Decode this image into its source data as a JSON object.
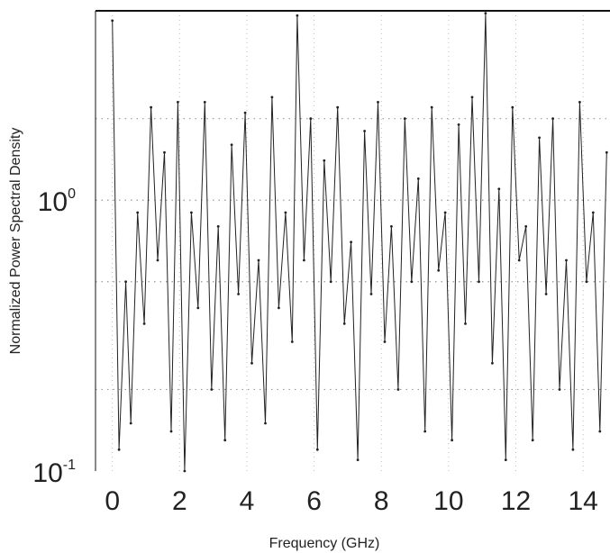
{
  "chart_data": {
    "type": "line",
    "title": "",
    "xlabel": "Frequency (GHz)",
    "ylabel": "Normalized Power Spectral Density",
    "xlim": [
      -0.5,
      14.8
    ],
    "ylim": [
      0.1,
      5
    ],
    "yscale": "log",
    "grid": true,
    "x_ticks": [
      0,
      2,
      4,
      6,
      8,
      10,
      12,
      14
    ],
    "x_tick_labels": [
      "0",
      "2",
      "4",
      "6",
      "8",
      "10",
      "12",
      "14"
    ],
    "y_ticks": [
      {
        "value": 1,
        "base": "10",
        "exponent": "0"
      },
      {
        "value": 0.1,
        "base": "10",
        "exponent": "-1"
      }
    ],
    "series": [
      {
        "color": "#222222",
        "x": [
          0,
          0.2,
          0.4,
          0.55,
          0.75,
          0.95,
          1.15,
          1.35,
          1.55,
          1.75,
          1.95,
          2.15,
          2.35,
          2.55,
          2.75,
          2.95,
          3.15,
          3.35,
          3.55,
          3.75,
          3.95,
          4.15,
          4.35,
          4.55,
          4.75,
          4.95,
          5.15,
          5.35,
          5.5,
          5.7,
          5.9,
          6.1,
          6.3,
          6.5,
          6.7,
          6.9,
          7.1,
          7.3,
          7.5,
          7.7,
          7.9,
          8.1,
          8.3,
          8.5,
          8.7,
          8.9,
          9.1,
          9.3,
          9.5,
          9.7,
          9.9,
          10.1,
          10.3,
          10.5,
          10.7,
          10.9,
          11.1,
          11.3,
          11.5,
          11.7,
          11.9,
          12.1,
          12.3,
          12.5,
          12.7,
          12.9,
          13.1,
          13.3,
          13.5,
          13.7,
          13.9,
          14.1,
          14.3,
          14.5,
          14.7
        ],
        "y": [
          4.6,
          0.12,
          0.5,
          0.15,
          0.9,
          0.35,
          2.2,
          0.6,
          1.5,
          0.14,
          2.3,
          0.1,
          0.9,
          0.4,
          2.3,
          0.2,
          0.8,
          0.13,
          1.6,
          0.45,
          2.1,
          0.25,
          0.6,
          0.15,
          2.4,
          0.4,
          0.9,
          0.3,
          4.8,
          0.6,
          2.0,
          0.12,
          1.4,
          0.5,
          2.2,
          0.35,
          0.7,
          0.11,
          1.8,
          0.45,
          2.3,
          0.3,
          0.8,
          0.2,
          2.0,
          0.5,
          1.2,
          0.14,
          2.2,
          0.55,
          0.9,
          0.13,
          1.9,
          0.35,
          2.4,
          0.5,
          4.9,
          0.25,
          1.1,
          0.11,
          2.2,
          0.6,
          0.8,
          0.13,
          1.7,
          0.45,
          2.0,
          0.2,
          0.6,
          0.12,
          2.3,
          0.5,
          0.9,
          0.14,
          1.5
        ]
      }
    ]
  }
}
